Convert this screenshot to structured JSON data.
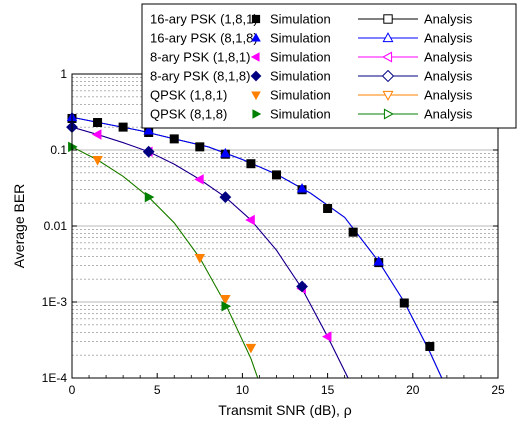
{
  "chart_data": {
    "type": "line",
    "xlabel": "Transmit SNR (dB), ρ",
    "ylabel": "Average BER",
    "xlim": [
      0,
      25
    ],
    "ylim": [
      0.0001,
      1
    ],
    "yscale": "log",
    "xticks": [
      0,
      5,
      10,
      15,
      20,
      25
    ],
    "xtick_labels": [
      "0",
      "5",
      "10",
      "15",
      "20",
      "25"
    ],
    "yticks": [
      0.0001,
      0.001,
      0.01,
      0.1,
      1
    ],
    "ytick_labels": [
      "1E-4",
      "1E-3",
      "0.01",
      "0.1",
      "1"
    ],
    "grid": "horizontal dashed at minor log ticks",
    "legend_position": "top-right",
    "legend_sim_label": "Simulation",
    "legend_ana_label": "Analysis",
    "series": [
      {
        "name": "16-ary PSK (1,8,1)",
        "color": "#000000",
        "sim_marker": "square",
        "ana_marker": "square-open",
        "x": [
          0,
          1.5,
          3,
          4.5,
          6,
          7.5,
          9,
          10.5,
          12,
          13.5,
          15,
          16.5,
          18,
          19.5,
          21
        ],
        "y": [
          0.26,
          0.23,
          0.2,
          0.17,
          0.14,
          0.11,
          0.088,
          0.066,
          0.047,
          0.03,
          0.017,
          0.0083,
          0.0033,
          0.00097,
          0.00026
        ],
        "curve_x": [
          0,
          2,
          4,
          6,
          8,
          10,
          12,
          14,
          16,
          18,
          19.5,
          21,
          21.7
        ],
        "curve_y": [
          0.27,
          0.22,
          0.18,
          0.14,
          0.11,
          0.075,
          0.048,
          0.027,
          0.013,
          0.0034,
          0.001,
          0.00022,
          0.0001
        ]
      },
      {
        "name": "16-ary PSK (8,1,8)",
        "color": "#0000ff",
        "sim_marker": "triangle-up",
        "ana_marker": "triangle-up-open",
        "x": [
          0,
          4.5,
          9,
          13.5,
          18
        ],
        "y": [
          0.27,
          0.18,
          0.09,
          0.031,
          0.0034
        ],
        "curve_x": [
          0,
          2,
          4,
          6,
          8,
          10,
          12,
          14,
          16,
          18,
          19.5,
          21,
          21.7
        ],
        "curve_y": [
          0.27,
          0.22,
          0.18,
          0.14,
          0.11,
          0.075,
          0.048,
          0.027,
          0.013,
          0.0034,
          0.001,
          0.00022,
          0.0001
        ]
      },
      {
        "name": "8-ary PSK (1,8,1)",
        "color": "#ff00ff",
        "sim_marker": "triangle-left",
        "ana_marker": "triangle-left-open",
        "x": [
          1.5,
          4.5,
          7.5,
          10.5,
          13.5,
          15
        ],
        "y": [
          0.16,
          0.095,
          0.041,
          0.012,
          0.0015,
          0.00035
        ],
        "curve_x": [
          0,
          1.5,
          3,
          4.5,
          6,
          7.5,
          9,
          10.5,
          12,
          13.5,
          15,
          16.2
        ],
        "curve_y": [
          0.2,
          0.16,
          0.125,
          0.095,
          0.065,
          0.041,
          0.024,
          0.012,
          0.0048,
          0.0015,
          0.00035,
          0.0001
        ]
      },
      {
        "name": "8-ary PSK (8,1,8)",
        "color": "#000080",
        "sim_marker": "diamond",
        "ana_marker": "diamond-open",
        "x": [
          0,
          4.5,
          9,
          13.5
        ],
        "y": [
          0.2,
          0.095,
          0.024,
          0.0016
        ],
        "curve_x": [
          0,
          1.5,
          3,
          4.5,
          6,
          7.5,
          9,
          10.5,
          12,
          13.5,
          15,
          16.2
        ],
        "curve_y": [
          0.2,
          0.16,
          0.125,
          0.095,
          0.065,
          0.041,
          0.024,
          0.012,
          0.0048,
          0.0015,
          0.00035,
          0.0001
        ]
      },
      {
        "name": "QPSK (1,8,1)",
        "color": "#ff8000",
        "sim_marker": "triangle-down",
        "ana_marker": "triangle-down-open",
        "x": [
          1.5,
          7.5,
          9,
          10.5
        ],
        "y": [
          0.074,
          0.0038,
          0.0011,
          0.00025
        ],
        "curve_x": [
          0,
          1.5,
          3,
          4.5,
          6,
          7.5,
          9,
          10.5,
          10.9
        ],
        "curve_y": [
          0.11,
          0.074,
          0.045,
          0.024,
          0.011,
          0.0038,
          0.00095,
          0.00018,
          0.0001
        ]
      },
      {
        "name": "QPSK (8,1,8)",
        "color": "#008000",
        "sim_marker": "triangle-right",
        "ana_marker": "triangle-right-open",
        "x": [
          0,
          4.5,
          9
        ],
        "y": [
          0.11,
          0.024,
          0.00088
        ],
        "curve_x": [
          0,
          1.5,
          3,
          4.5,
          6,
          7.5,
          9,
          10.5,
          10.9
        ],
        "curve_y": [
          0.11,
          0.074,
          0.045,
          0.024,
          0.011,
          0.0038,
          0.00095,
          0.00018,
          0.0001
        ]
      }
    ]
  }
}
